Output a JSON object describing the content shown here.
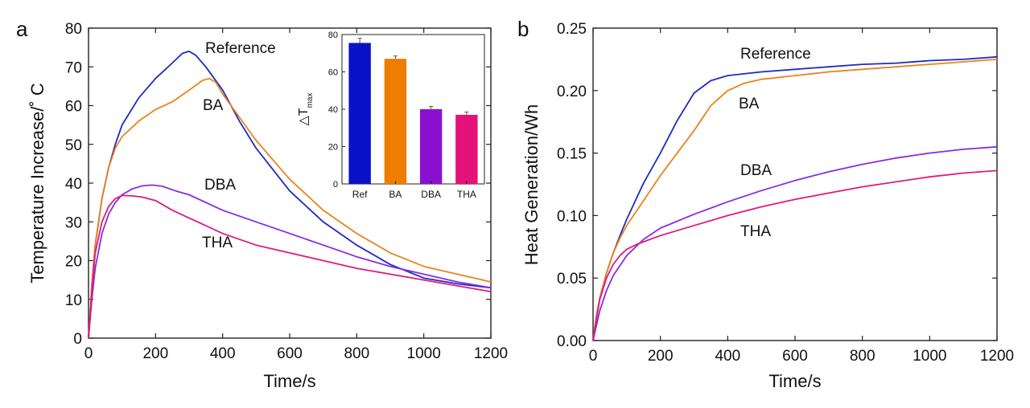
{
  "panel_a": {
    "panel_label": "a",
    "ylabel": "Temperature Increase/˚ C",
    "xlabel": "Time/s"
  },
  "panel_b": {
    "panel_label": "b",
    "ylabel": "Heat Generation/Wh",
    "xlabel": "Time/s"
  },
  "chart_data": [
    {
      "type": "line",
      "id": "a",
      "title": "",
      "xlabel": "Time/s",
      "ylabel": "Temperature Increase/˚ C",
      "xlim": [
        0,
        1200
      ],
      "ylim": [
        0,
        80
      ],
      "xticks": [
        0,
        200,
        400,
        600,
        800,
        1000,
        1200
      ],
      "yticks": [
        0,
        10,
        20,
        30,
        40,
        50,
        60,
        70,
        80
      ],
      "grid": false,
      "series": [
        {
          "name": "Reference",
          "color": "#1f2bbf",
          "x": [
            0,
            10,
            20,
            40,
            60,
            80,
            100,
            150,
            200,
            250,
            280,
            300,
            320,
            350,
            400,
            450,
            500,
            600,
            700,
            800,
            900,
            1000,
            1100,
            1200
          ],
          "y": [
            0,
            14,
            24,
            36,
            44,
            50,
            55,
            62,
            67,
            71,
            73.5,
            74,
            73,
            70,
            64,
            56,
            49,
            38,
            30,
            24,
            19,
            15.5,
            14,
            13
          ]
        },
        {
          "name": "BA",
          "color": "#e8841a",
          "x": [
            0,
            10,
            20,
            40,
            60,
            80,
            100,
            150,
            200,
            250,
            300,
            340,
            360,
            380,
            400,
            450,
            500,
            600,
            700,
            800,
            900,
            1000,
            1100,
            1200
          ],
          "y": [
            0,
            14,
            24,
            36,
            44,
            49,
            52,
            56,
            59,
            61,
            64,
            66.5,
            67,
            66,
            63,
            57,
            51,
            41,
            33,
            27,
            22,
            18.5,
            16.5,
            14.5
          ]
        },
        {
          "name": "DBA",
          "color": "#8a2be2",
          "x": [
            0,
            10,
            20,
            40,
            60,
            80,
            100,
            130,
            160,
            190,
            220,
            260,
            300,
            400,
            500,
            600,
            700,
            800,
            900,
            1000,
            1100,
            1200
          ],
          "y": [
            0,
            10,
            18,
            27,
            32,
            35,
            37,
            38.5,
            39.3,
            39.5,
            39.2,
            38,
            37,
            33,
            30,
            27,
            24,
            21,
            18.5,
            16.5,
            14.5,
            13
          ]
        },
        {
          "name": "THA",
          "color": "#e01a7a",
          "x": [
            0,
            10,
            20,
            40,
            60,
            80,
            100,
            130,
            160,
            200,
            250,
            300,
            400,
            500,
            600,
            700,
            800,
            900,
            1000,
            1100,
            1200
          ],
          "y": [
            0,
            12,
            22,
            30,
            34,
            36,
            36.8,
            36.7,
            36.4,
            35.5,
            33,
            31,
            27,
            24,
            22,
            20,
            18,
            16.5,
            15,
            13.5,
            12
          ]
        }
      ],
      "annotations": [
        "Reference",
        "BA",
        "DBA",
        "THA"
      ]
    },
    {
      "type": "bar",
      "id": "a-inset",
      "title": "",
      "ylabel": "△T",
      "ylabel_subscript": "max",
      "categories": [
        "Ref",
        "BA",
        "DBA",
        "THA"
      ],
      "values": [
        75.5,
        67,
        40,
        37
      ],
      "errors": [
        2.5,
        1.5,
        1.5,
        1.5
      ],
      "colors": [
        "#0a12c8",
        "#ee7d00",
        "#8a10cf",
        "#e5127a"
      ],
      "ylim": [
        0,
        80
      ],
      "yticks": [
        0,
        20,
        40,
        60,
        80
      ]
    },
    {
      "type": "line",
      "id": "b",
      "title": "",
      "xlabel": "Time/s",
      "ylabel": "Heat Generation/Wh",
      "xlim": [
        0,
        1200
      ],
      "ylim": [
        0,
        0.25
      ],
      "xticks": [
        0,
        200,
        400,
        600,
        800,
        1000,
        1200
      ],
      "yticks": [
        "0.00",
        "0.05",
        "0.10",
        "0.15",
        "0.20",
        "0.25"
      ],
      "grid": false,
      "series": [
        {
          "name": "Reference",
          "color": "#1f2bbf",
          "x": [
            0,
            10,
            20,
            40,
            60,
            80,
            100,
            150,
            200,
            250,
            300,
            350,
            400,
            500,
            600,
            700,
            800,
            900,
            1000,
            1100,
            1200
          ],
          "y": [
            0,
            0.02,
            0.034,
            0.054,
            0.07,
            0.084,
            0.097,
            0.126,
            0.15,
            0.176,
            0.198,
            0.208,
            0.212,
            0.215,
            0.217,
            0.219,
            0.221,
            0.222,
            0.224,
            0.225,
            0.227
          ]
        },
        {
          "name": "BA",
          "color": "#e8841a",
          "x": [
            0,
            10,
            20,
            40,
            60,
            80,
            100,
            150,
            200,
            250,
            300,
            350,
            400,
            450,
            500,
            600,
            700,
            800,
            900,
            1000,
            1100,
            1200
          ],
          "y": [
            0,
            0.02,
            0.034,
            0.054,
            0.07,
            0.082,
            0.092,
            0.112,
            0.132,
            0.15,
            0.168,
            0.188,
            0.2,
            0.206,
            0.209,
            0.212,
            0.215,
            0.217,
            0.219,
            0.221,
            0.223,
            0.225
          ]
        },
        {
          "name": "DBA",
          "color": "#8a2be2",
          "x": [
            0,
            10,
            20,
            40,
            60,
            80,
            100,
            150,
            200,
            300,
            400,
            500,
            600,
            700,
            800,
            900,
            1000,
            1100,
            1200
          ],
          "y": [
            0,
            0.012,
            0.024,
            0.04,
            0.052,
            0.06,
            0.068,
            0.081,
            0.09,
            0.101,
            0.111,
            0.12,
            0.128,
            0.135,
            0.141,
            0.146,
            0.15,
            0.153,
            0.155
          ]
        },
        {
          "name": "THA",
          "color": "#e01a7a",
          "x": [
            0,
            10,
            20,
            40,
            60,
            80,
            100,
            130,
            160,
            200,
            300,
            400,
            500,
            600,
            700,
            800,
            900,
            1000,
            1100,
            1200
          ],
          "y": [
            0,
            0.017,
            0.033,
            0.05,
            0.061,
            0.068,
            0.073,
            0.077,
            0.08,
            0.084,
            0.092,
            0.1,
            0.107,
            0.113,
            0.118,
            0.123,
            0.127,
            0.131,
            0.134,
            0.136
          ]
        }
      ],
      "annotations": [
        "Reference",
        "BA",
        "DBA",
        "THA"
      ]
    }
  ]
}
